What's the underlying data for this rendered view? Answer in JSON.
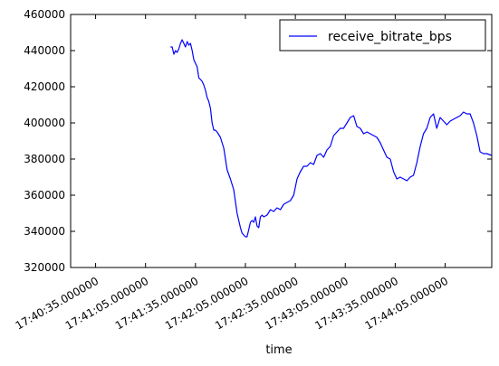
{
  "chart_data": {
    "type": "line",
    "title": "",
    "xlabel": "time",
    "ylabel": "",
    "ylim": [
      320000,
      460000
    ],
    "xlim": [
      "17:40:20",
      "17:44:33"
    ],
    "x_tick_labels": [
      {
        "t": "17:40:35",
        "label": "17:40:35.000000"
      },
      {
        "t": "17:41:05",
        "label": "17:41:05.000000"
      },
      {
        "t": "17:41:35",
        "label": "17:41:35.000000"
      },
      {
        "t": "17:42:05",
        "label": "17:42:05.000000"
      },
      {
        "t": "17:42:35",
        "label": "17:42:35.000000"
      },
      {
        "t": "17:43:05",
        "label": "17:43:05.000000"
      },
      {
        "t": "17:43:35",
        "label": "17:43:35.000000"
      },
      {
        "t": "17:44:05",
        "label": "17:44:05.000000"
      }
    ],
    "y_ticks": [
      320000,
      340000,
      360000,
      380000,
      400000,
      420000,
      440000,
      460000
    ],
    "y_tick_labels": [
      "320000",
      "340000",
      "360000",
      "380000",
      "400000",
      "420000",
      "440000",
      "460000"
    ],
    "legend": {
      "placement": "top-right",
      "entries": [
        "receive_bitrate_bps"
      ]
    },
    "grid": false,
    "series": [
      {
        "name": "receive_bitrate_bps",
        "color": "#0000ff",
        "x": [
          "17:41:20",
          "17:41:21",
          "17:41:22",
          "17:41:23",
          "17:41:24",
          "17:41:25",
          "17:41:26",
          "17:41:27",
          "17:41:28",
          "17:41:29",
          "17:41:30",
          "17:41:31",
          "17:41:32",
          "17:41:33",
          "17:41:34",
          "17:41:35",
          "17:41:36",
          "17:41:37",
          "17:41:38",
          "17:41:39",
          "17:41:40",
          "17:41:41",
          "17:41:42",
          "17:41:43",
          "17:41:44",
          "17:41:45",
          "17:41:46",
          "17:41:47",
          "17:41:48",
          "17:41:50",
          "17:41:52",
          "17:41:54",
          "17:41:56",
          "17:41:58",
          "17:42:00",
          "17:42:02",
          "17:42:03",
          "17:42:04",
          "17:42:05",
          "17:42:06",
          "17:42:07",
          "17:42:08",
          "17:42:09",
          "17:42:10",
          "17:42:11",
          "17:42:12",
          "17:42:13",
          "17:42:14",
          "17:42:15",
          "17:42:16",
          "17:42:18",
          "17:42:20",
          "17:42:22",
          "17:42:24",
          "17:42:26",
          "17:42:28",
          "17:42:30",
          "17:42:32",
          "17:42:34",
          "17:42:36",
          "17:42:38",
          "17:42:40",
          "17:42:42",
          "17:42:44",
          "17:42:46",
          "17:42:48",
          "17:42:50",
          "17:42:52",
          "17:42:54",
          "17:42:56",
          "17:42:58",
          "17:43:00",
          "17:43:02",
          "17:43:04",
          "17:43:06",
          "17:43:08",
          "17:43:10",
          "17:43:12",
          "17:43:14",
          "17:43:16",
          "17:43:18",
          "17:43:20",
          "17:43:22",
          "17:43:24",
          "17:43:26",
          "17:43:28",
          "17:43:30",
          "17:43:32",
          "17:43:34",
          "17:43:36",
          "17:43:38",
          "17:43:40",
          "17:43:42",
          "17:43:44",
          "17:43:46",
          "17:43:48",
          "17:43:50",
          "17:43:52",
          "17:43:54",
          "17:43:56",
          "17:43:58",
          "17:44:00",
          "17:44:02",
          "17:44:04",
          "17:44:06",
          "17:44:08",
          "17:44:10",
          "17:44:12",
          "17:44:14",
          "17:44:16",
          "17:44:18",
          "17:44:20",
          "17:44:22",
          "17:44:24",
          "17:44:26",
          "17:44:28",
          "17:44:30",
          "17:44:33"
        ],
        "values": [
          442000,
          442000,
          438000,
          440000,
          439000,
          441000,
          444000,
          446000,
          444000,
          442000,
          445000,
          443000,
          444000,
          440000,
          435000,
          433000,
          431000,
          425000,
          424000,
          423000,
          421000,
          418000,
          414000,
          412000,
          408000,
          400000,
          396000,
          396000,
          395000,
          392000,
          386000,
          374000,
          369000,
          363000,
          350000,
          342000,
          339000,
          338000,
          337000,
          337000,
          341000,
          345000,
          346000,
          345000,
          348000,
          343000,
          342000,
          348000,
          349000,
          348000,
          349000,
          352000,
          351000,
          353000,
          352000,
          355000,
          356000,
          357000,
          360000,
          369000,
          373000,
          376000,
          376000,
          378000,
          377000,
          382000,
          383000,
          381000,
          385000,
          387000,
          393000,
          395000,
          397000,
          397000,
          400000,
          403000,
          404000,
          398000,
          397000,
          394000,
          395000,
          394000,
          393000,
          392000,
          389000,
          385000,
          381000,
          380000,
          373000,
          369000,
          370000,
          369000,
          368000,
          370000,
          371000,
          378000,
          387000,
          394000,
          397000,
          403000,
          405000,
          397000,
          403000,
          401000,
          399000,
          401000,
          402000,
          403000,
          404000,
          406000,
          405000,
          405000,
          400000,
          393000,
          384000,
          383000,
          383000,
          382000
        ]
      }
    ]
  }
}
